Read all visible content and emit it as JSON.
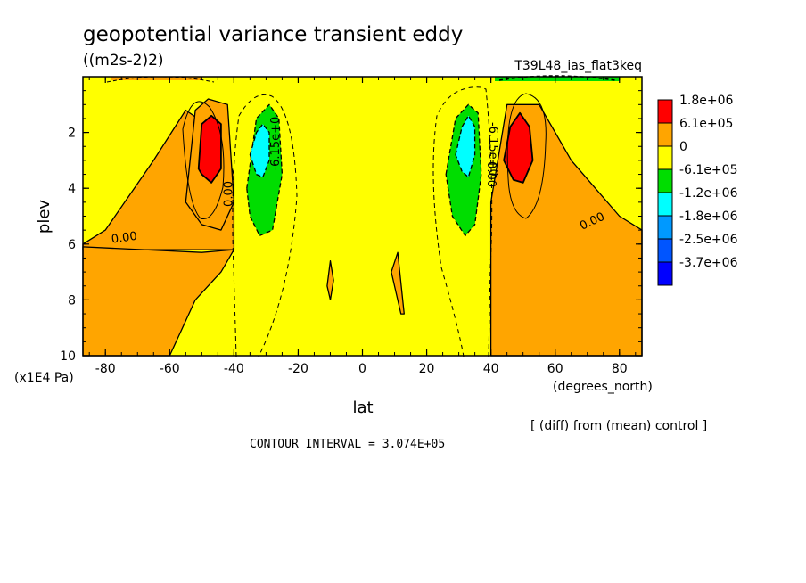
{
  "chart_data": {
    "type": "heatmap",
    "title": "geopotential variance transient eddy",
    "units": "((m2s-2)2)",
    "experiment": "T39L48_ias_flat3keq",
    "xlabel": "lat",
    "xunits": "(degrees_north)",
    "ylabel": "plev",
    "yunits": "(x1E4 Pa)",
    "xlim": [
      -87,
      87
    ],
    "ylim": [
      10,
      0
    ],
    "xticks": [
      "-80",
      "-60",
      "-40",
      "-20",
      "0",
      "20",
      "40",
      "60",
      "80"
    ],
    "yticks": [
      "2",
      "4",
      "6",
      "8",
      "10"
    ],
    "legend": {
      "placement": "right",
      "labels": [
        "1.8e+06",
        "6.1e+05",
        "0",
        "-6.1e+05",
        "-1.2e+06",
        "-1.8e+06",
        "-2.5e+06",
        "-3.7e+06"
      ],
      "colors": [
        "#ff0000",
        "#ffa500",
        "#ffff00",
        "#00dd00",
        "#00ffff",
        "#0099ff",
        "#0055ff",
        "#0000ff"
      ]
    },
    "contour_labels": [
      "0.00",
      "0.00",
      "0.00",
      "0.00",
      "-6.15e+0",
      "-6.15e+0"
    ],
    "contour_interval_text": "CONTOUR INTERVAL = 3.074E+05",
    "diff_note": "[ (diff) from (mean) control ]",
    "regions": [
      {
        "level": "positive",
        "x": [
          -87,
          -40,
          -40,
          -45,
          -55,
          -65,
          -80,
          -87
        ],
        "y": [
          6.2,
          6.2,
          3.5,
          2.0,
          1.2,
          3.0,
          5.5,
          6.0
        ]
      },
      {
        "level": "positive",
        "x": [
          -87,
          -60,
          -52,
          -44,
          -40,
          -40,
          -50,
          -87
        ],
        "y": [
          10,
          10,
          8,
          7,
          6.2,
          6.2,
          6.3,
          6.1
        ]
      },
      {
        "level": "positive",
        "x": [
          -55,
          -52,
          -48,
          -42,
          -40,
          -44,
          -50,
          -55
        ],
        "y": [
          4.5,
          1.2,
          0.8,
          1.0,
          4.5,
          5.5,
          5.3,
          4.5
        ]
      },
      {
        "level": "max",
        "x": [
          -51,
          -50,
          -47,
          -44,
          -44,
          -47,
          -50
        ],
        "y": [
          3.3,
          1.7,
          1.4,
          1.7,
          3.3,
          3.8,
          3.5
        ]
      },
      {
        "level": "positive",
        "x": [
          40,
          45,
          55,
          65,
          80,
          87,
          87,
          40
        ],
        "y": [
          4.5,
          1.0,
          1.0,
          3.0,
          5.0,
          5.5,
          10,
          10
        ]
      },
      {
        "level": "max",
        "x": [
          44,
          46,
          49,
          52,
          53,
          50,
          47,
          44
        ],
        "y": [
          3.0,
          1.8,
          1.3,
          1.8,
          3.0,
          3.8,
          3.7,
          3.0
        ]
      },
      {
        "level": "negative1",
        "x": [
          -36,
          -33,
          -29,
          -26,
          -25,
          -28,
          -32,
          -35
        ],
        "y": [
          4.0,
          1.5,
          1.0,
          1.5,
          3.5,
          5.5,
          5.7,
          5.0
        ]
      },
      {
        "level": "negative2",
        "x": [
          -35,
          -33,
          -31,
          -29,
          -29,
          -31,
          -33
        ],
        "y": [
          2.8,
          2.0,
          1.7,
          2.0,
          3.0,
          3.6,
          3.5
        ]
      },
      {
        "level": "negative1",
        "x": [
          26,
          29,
          33,
          36,
          37,
          35,
          32,
          28
        ],
        "y": [
          3.5,
          1.5,
          1.0,
          1.3,
          3.5,
          5.3,
          5.7,
          5.0
        ]
      },
      {
        "level": "negative2",
        "x": [
          29,
          31,
          33,
          35,
          35,
          33,
          31
        ],
        "y": [
          2.8,
          1.8,
          1.4,
          1.8,
          2.8,
          3.6,
          3.4
        ]
      },
      {
        "level": "positive",
        "x": [
          -11,
          -10,
          -9,
          -10
        ],
        "y": [
          7.5,
          6.6,
          7.3,
          8.0
        ]
      },
      {
        "level": "positive",
        "x": [
          9,
          11,
          13,
          12
        ],
        "y": [
          7.0,
          6.3,
          8.5,
          8.5
        ]
      }
    ]
  }
}
